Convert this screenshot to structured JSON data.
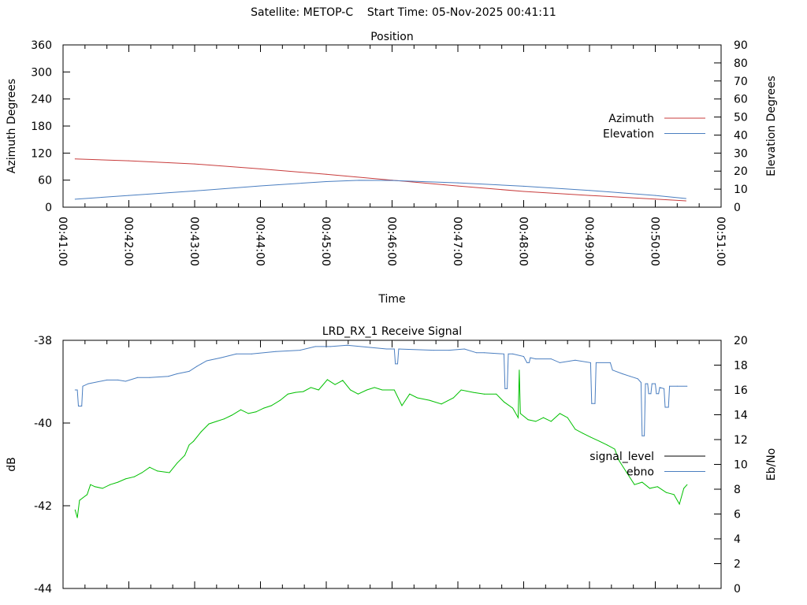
{
  "header": {
    "title": "Satellite: METOP-C    Start Time: 05-Nov-2025 00:41:11"
  },
  "chart_data": [
    {
      "type": "line",
      "title": "Position",
      "xlabel": "Time",
      "ylabel": "Azimuth Degrees",
      "y2label": "Elevation Degrees",
      "xlim": [
        "00:41:00",
        "00:51:00"
      ],
      "ylim": [
        0,
        360
      ],
      "y2lim": [
        0,
        90
      ],
      "xticks": [
        "00:41:00",
        "00:42:00",
        "00:43:00",
        "00:44:00",
        "00:45:00",
        "00:46:00",
        "00:47:00",
        "00:48:00",
        "00:49:00",
        "00:50:00",
        "00:51:00"
      ],
      "yticks": [
        0,
        60,
        120,
        180,
        240,
        300,
        360
      ],
      "y2ticks": [
        0,
        10,
        20,
        30,
        40,
        50,
        60,
        70,
        80,
        90
      ],
      "grid": false,
      "legend": "right",
      "series": [
        {
          "name": "Azimuth",
          "axis": "y",
          "color": "#c83c3c",
          "points": [
            [
              "00:41:11",
              107
            ],
            [
              "00:42:00",
              103
            ],
            [
              "00:43:00",
              96
            ],
            [
              "00:44:00",
              85
            ],
            [
              "00:45:00",
              73
            ],
            [
              "00:46:00",
              60
            ],
            [
              "00:47:00",
              47
            ],
            [
              "00:48:00",
              35
            ],
            [
              "00:49:00",
              26
            ],
            [
              "00:50:00",
              18
            ],
            [
              "00:50:28",
              14
            ]
          ]
        },
        {
          "name": "Elevation",
          "axis": "y2",
          "color": "#4a7ec0",
          "points": [
            [
              "00:41:11",
              4.4
            ],
            [
              "00:42:00",
              6.5
            ],
            [
              "00:43:00",
              9.0
            ],
            [
              "00:44:00",
              11.8
            ],
            [
              "00:45:00",
              14.2
            ],
            [
              "00:45:30",
              14.9
            ],
            [
              "00:46:00",
              14.8
            ],
            [
              "00:47:00",
              13.5
            ],
            [
              "00:48:00",
              11.6
            ],
            [
              "00:49:00",
              9.3
            ],
            [
              "00:50:00",
              6.5
            ],
            [
              "00:50:28",
              4.8
            ]
          ]
        }
      ]
    },
    {
      "type": "line",
      "title": "LRD_RX_1 Receive Signal",
      "ylabel": "dB",
      "y2label": "Eb/No",
      "xlim": [
        "00:41:00",
        "00:51:00"
      ],
      "ylim": [
        -44,
        -38
      ],
      "y2lim": [
        0,
        20
      ],
      "yticks": [
        -38,
        -40,
        -42,
        -44
      ],
      "y2ticks": [
        0,
        2,
        4,
        6,
        8,
        10,
        12,
        14,
        16,
        18,
        20
      ],
      "grid": false,
      "legend": "right",
      "series": [
        {
          "name": "signal_level",
          "axis": "y",
          "color": "#00c000",
          "legend_color": "#000000",
          "points": [
            [
              "00:41:11",
              -42.1
            ],
            [
              "00:41:13",
              -42.29
            ],
            [
              "00:41:15",
              -41.87
            ],
            [
              "00:41:18",
              -41.81
            ],
            [
              "00:41:22",
              -41.73
            ],
            [
              "00:41:25",
              -41.49
            ],
            [
              "00:41:29",
              -41.54
            ],
            [
              "00:41:36",
              -41.58
            ],
            [
              "00:41:43",
              -41.49
            ],
            [
              "00:41:50",
              -41.43
            ],
            [
              "00:41:57",
              -41.35
            ],
            [
              "00:42:05",
              -41.3
            ],
            [
              "00:42:12",
              -41.2
            ],
            [
              "00:42:19",
              -41.07
            ],
            [
              "00:42:26",
              -41.16
            ],
            [
              "00:42:37",
              -41.2
            ],
            [
              "00:42:44",
              -40.97
            ],
            [
              "00:42:51",
              -40.78
            ],
            [
              "00:42:55",
              -40.53
            ],
            [
              "00:42:59",
              -40.44
            ],
            [
              "00:43:06",
              -40.21
            ],
            [
              "00:43:13",
              -40.02
            ],
            [
              "00:43:20",
              -39.96
            ],
            [
              "00:43:27",
              -39.9
            ],
            [
              "00:43:34",
              -39.81
            ],
            [
              "00:43:42",
              -39.68
            ],
            [
              "00:43:49",
              -39.77
            ],
            [
              "00:43:56",
              -39.73
            ],
            [
              "00:44:03",
              -39.64
            ],
            [
              "00:44:10",
              -39.58
            ],
            [
              "00:44:18",
              -39.45
            ],
            [
              "00:44:25",
              -39.3
            ],
            [
              "00:44:32",
              -39.26
            ],
            [
              "00:44:39",
              -39.24
            ],
            [
              "00:44:46",
              -39.14
            ],
            [
              "00:44:53",
              -39.2
            ],
            [
              "00:45:01",
              -38.95
            ],
            [
              "00:45:08",
              -39.07
            ],
            [
              "00:45:15",
              -38.97
            ],
            [
              "00:45:22",
              -39.2
            ],
            [
              "00:45:29",
              -39.3
            ],
            [
              "00:45:37",
              -39.2
            ],
            [
              "00:45:44",
              -39.14
            ],
            [
              "00:45:51",
              -39.2
            ],
            [
              "00:46:02",
              -39.2
            ],
            [
              "00:46:09",
              -39.58
            ],
            [
              "00:46:16",
              -39.3
            ],
            [
              "00:46:23",
              -39.39
            ],
            [
              "00:46:34",
              -39.45
            ],
            [
              "00:46:45",
              -39.54
            ],
            [
              "00:46:56",
              -39.39
            ],
            [
              "00:47:03",
              -39.2
            ],
            [
              "00:47:14",
              -39.26
            ],
            [
              "00:47:24",
              -39.3
            ],
            [
              "00:47:35",
              -39.3
            ],
            [
              "00:47:42",
              -39.49
            ],
            [
              "00:47:50",
              -39.64
            ],
            [
              "00:47:55",
              -39.87
            ],
            [
              "00:47:56",
              -38.72
            ],
            [
              "00:47:57",
              -39.77
            ],
            [
              "00:48:04",
              -39.92
            ],
            [
              "00:48:11",
              -39.96
            ],
            [
              "00:48:18",
              -39.87
            ],
            [
              "00:48:25",
              -39.96
            ],
            [
              "00:48:33",
              -39.77
            ],
            [
              "00:48:40",
              -39.87
            ],
            [
              "00:48:47",
              -40.15
            ],
            [
              "00:48:54",
              -40.25
            ],
            [
              "00:49:01",
              -40.34
            ],
            [
              "00:49:09",
              -40.44
            ],
            [
              "00:49:16",
              -40.53
            ],
            [
              "00:49:23",
              -40.63
            ],
            [
              "00:49:27",
              -40.91
            ],
            [
              "00:49:34",
              -41.2
            ],
            [
              "00:49:41",
              -41.49
            ],
            [
              "00:49:48",
              -41.43
            ],
            [
              "00:49:55",
              -41.58
            ],
            [
              "00:50:02",
              -41.54
            ],
            [
              "00:50:10",
              -41.68
            ],
            [
              "00:50:17",
              -41.73
            ],
            [
              "00:50:22",
              -41.96
            ],
            [
              "00:50:26",
              -41.58
            ],
            [
              "00:50:29",
              -41.49
            ]
          ]
        },
        {
          "name": "ebno",
          "axis": "y2",
          "color": "#4a7ec0",
          "points": [
            [
              "00:41:11",
              16.0
            ],
            [
              "00:41:13",
              16.0
            ],
            [
              "00:41:14",
              14.7
            ],
            [
              "00:41:17",
              14.7
            ],
            [
              "00:41:18",
              16.3
            ],
            [
              "00:41:23",
              16.5
            ],
            [
              "00:41:40",
              16.8
            ],
            [
              "00:41:50",
              16.8
            ],
            [
              "00:41:57",
              16.7
            ],
            [
              "00:42:08",
              17.0
            ],
            [
              "00:42:19",
              17.0
            ],
            [
              "00:42:36",
              17.1
            ],
            [
              "00:42:44",
              17.3
            ],
            [
              "00:42:55",
              17.5
            ],
            [
              "00:43:02",
              17.9
            ],
            [
              "00:43:06",
              18.1
            ],
            [
              "00:43:11",
              18.35
            ],
            [
              "00:43:24",
              18.6
            ],
            [
              "00:43:38",
              18.9
            ],
            [
              "00:43:52",
              18.9
            ],
            [
              "00:44:14",
              19.1
            ],
            [
              "00:44:36",
              19.2
            ],
            [
              "00:44:50",
              19.5
            ],
            [
              "00:45:04",
              19.5
            ],
            [
              "00:45:19",
              19.6
            ],
            [
              "00:45:55",
              19.3
            ],
            [
              "00:46:02",
              19.3
            ],
            [
              "00:46:03",
              18.1
            ],
            [
              "00:46:05",
              18.1
            ],
            [
              "00:46:06",
              19.3
            ],
            [
              "00:46:38",
              19.2
            ],
            [
              "00:46:52",
              19.2
            ],
            [
              "00:47:06",
              19.3
            ],
            [
              "00:47:17",
              19.0
            ],
            [
              "00:47:24",
              19.0
            ],
            [
              "00:47:42",
              18.9
            ],
            [
              "00:47:43",
              16.1
            ],
            [
              "00:47:45",
              16.1
            ],
            [
              "00:47:46",
              18.9
            ],
            [
              "00:47:50",
              18.9
            ],
            [
              "00:48:00",
              18.7
            ],
            [
              "00:48:03",
              18.2
            ],
            [
              "00:48:05",
              18.2
            ],
            [
              "00:48:06",
              18.6
            ],
            [
              "00:48:11",
              18.5
            ],
            [
              "00:48:25",
              18.5
            ],
            [
              "00:48:33",
              18.2
            ],
            [
              "00:48:47",
              18.4
            ],
            [
              "00:49:01",
              18.2
            ],
            [
              "00:49:02",
              14.9
            ],
            [
              "00:49:05",
              14.9
            ],
            [
              "00:49:06",
              18.2
            ],
            [
              "00:49:19",
              18.2
            ],
            [
              "00:49:21",
              17.6
            ],
            [
              "00:49:30",
              17.3
            ],
            [
              "00:49:37",
              17.1
            ],
            [
              "00:49:44",
              16.9
            ],
            [
              "00:49:47",
              16.6
            ],
            [
              "00:49:48",
              12.3
            ],
            [
              "00:49:50",
              12.3
            ],
            [
              "00:49:51",
              16.5
            ],
            [
              "00:49:53",
              16.5
            ],
            [
              "00:49:54",
              15.7
            ],
            [
              "00:49:56",
              15.7
            ],
            [
              "00:49:57",
              16.5
            ],
            [
              "00:50:00",
              16.5
            ],
            [
              "00:50:01",
              15.7
            ],
            [
              "00:50:03",
              15.7
            ],
            [
              "00:50:04",
              16.2
            ],
            [
              "00:50:08",
              16.1
            ],
            [
              "00:50:09",
              14.6
            ],
            [
              "00:50:12",
              14.6
            ],
            [
              "00:50:13",
              16.3
            ],
            [
              "00:50:20",
              16.3
            ],
            [
              "00:50:29",
              16.3
            ]
          ]
        }
      ]
    }
  ]
}
